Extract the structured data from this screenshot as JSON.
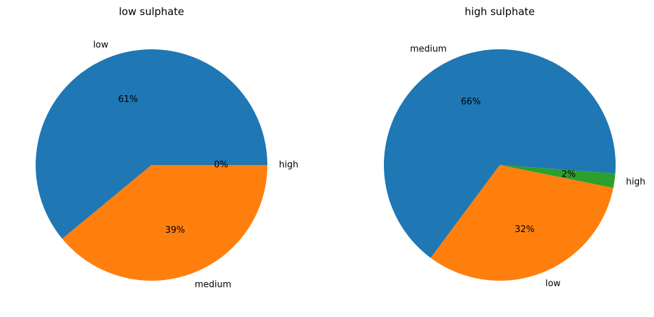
{
  "chart_data": [
    {
      "type": "pie",
      "title": "low sulphate",
      "slices": [
        {
          "label": "high",
          "percent": 0,
          "pct_text": "0%",
          "color": "#2ca02c"
        },
        {
          "label": "low",
          "percent": 61,
          "pct_text": "61%",
          "color": "#1f77b4"
        },
        {
          "label": "medium",
          "percent": 39,
          "pct_text": "39%",
          "color": "#ff7f0e"
        }
      ]
    },
    {
      "type": "pie",
      "title": "high sulphate",
      "slices": [
        {
          "label": "medium",
          "percent": 66,
          "pct_text": "66%",
          "color": "#1f77b4"
        },
        {
          "label": "low",
          "percent": 32,
          "pct_text": "32%",
          "color": "#ff7f0e"
        },
        {
          "label": "high",
          "percent": 2,
          "pct_text": "2%",
          "color": "#2ca02c"
        }
      ]
    }
  ]
}
